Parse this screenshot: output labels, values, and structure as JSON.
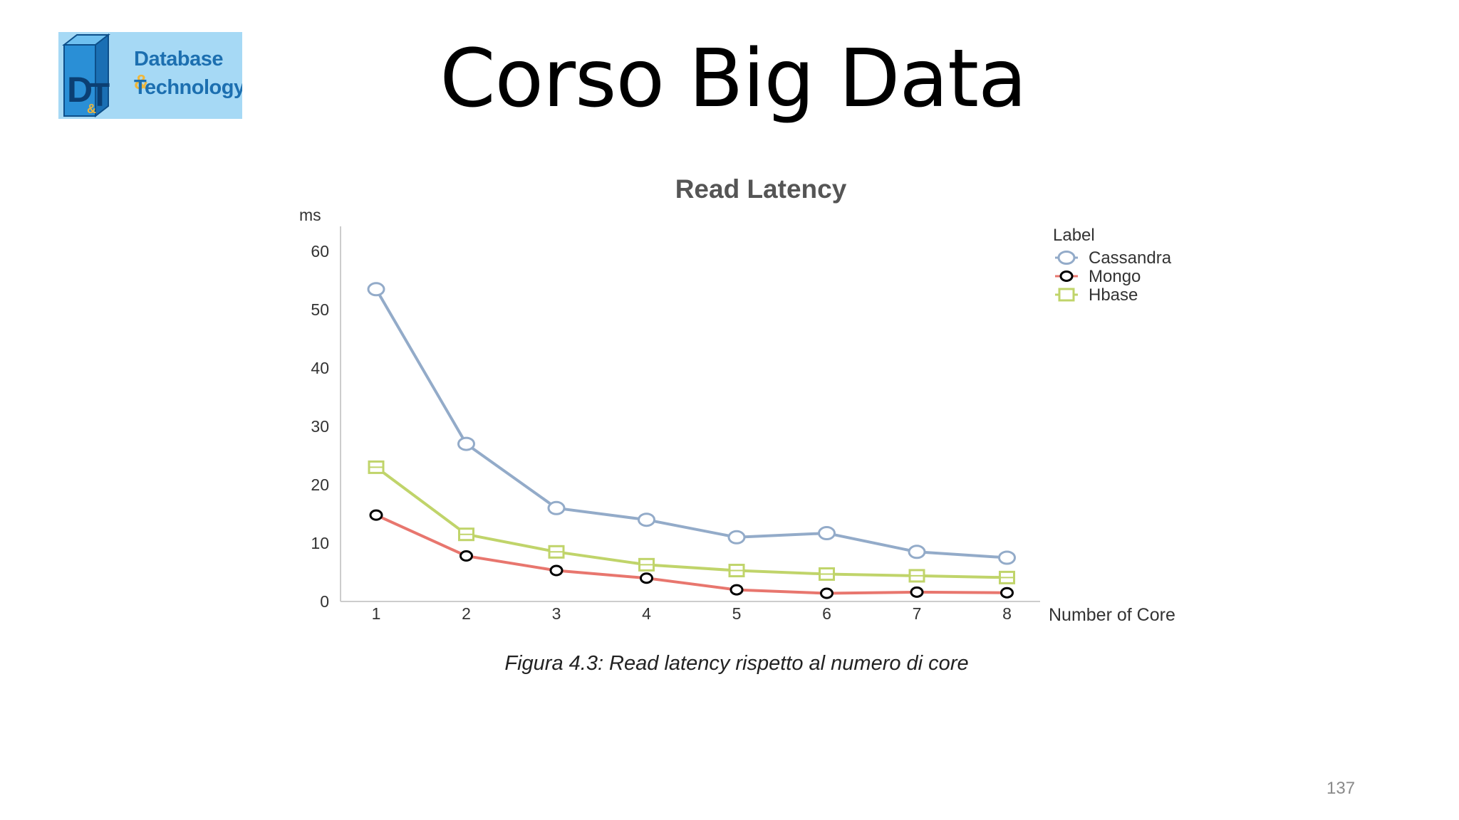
{
  "slide": {
    "title": "Corso Big Data",
    "caption": "Figura 4.3: Read latency rispetto al numero di core",
    "page_number": "137"
  },
  "logo": {
    "line1": "Database",
    "line1_amp": "&",
    "line2": "Technology",
    "mark_letters": "D&T"
  },
  "colors": {
    "cassandra": "#93abc9",
    "mongo_line": "#e8766e",
    "mongo_marker": "#000000",
    "hbase": "#c0d46a",
    "axis": "#cccccc",
    "text": "#333333"
  },
  "chart_data": {
    "type": "line",
    "title": "Read Latency",
    "ylabel": "ms",
    "xlabel": "Number of Core",
    "legend_title": "Label",
    "legend_position": "top-right",
    "grid": false,
    "x": [
      1,
      2,
      3,
      4,
      5,
      6,
      7,
      8
    ],
    "xticks": [
      "1",
      "2",
      "3",
      "4",
      "5",
      "6",
      "7",
      "8"
    ],
    "yticks": [
      "0",
      "10",
      "20",
      "30",
      "40",
      "50",
      "60"
    ],
    "ylim": [
      0,
      60
    ],
    "series": [
      {
        "name": "Cassandra",
        "marker": "circle",
        "values": [
          53.5,
          27,
          16,
          14,
          11,
          11.7,
          8.5,
          7.5
        ]
      },
      {
        "name": "Mongo",
        "marker": "circle",
        "values": [
          14.8,
          7.8,
          5.3,
          4,
          2,
          1.4,
          1.6,
          1.5
        ]
      },
      {
        "name": "Hbase",
        "marker": "square",
        "values": [
          23,
          11.5,
          8.5,
          6.3,
          5.3,
          4.7,
          4.4,
          4.1
        ]
      }
    ]
  }
}
